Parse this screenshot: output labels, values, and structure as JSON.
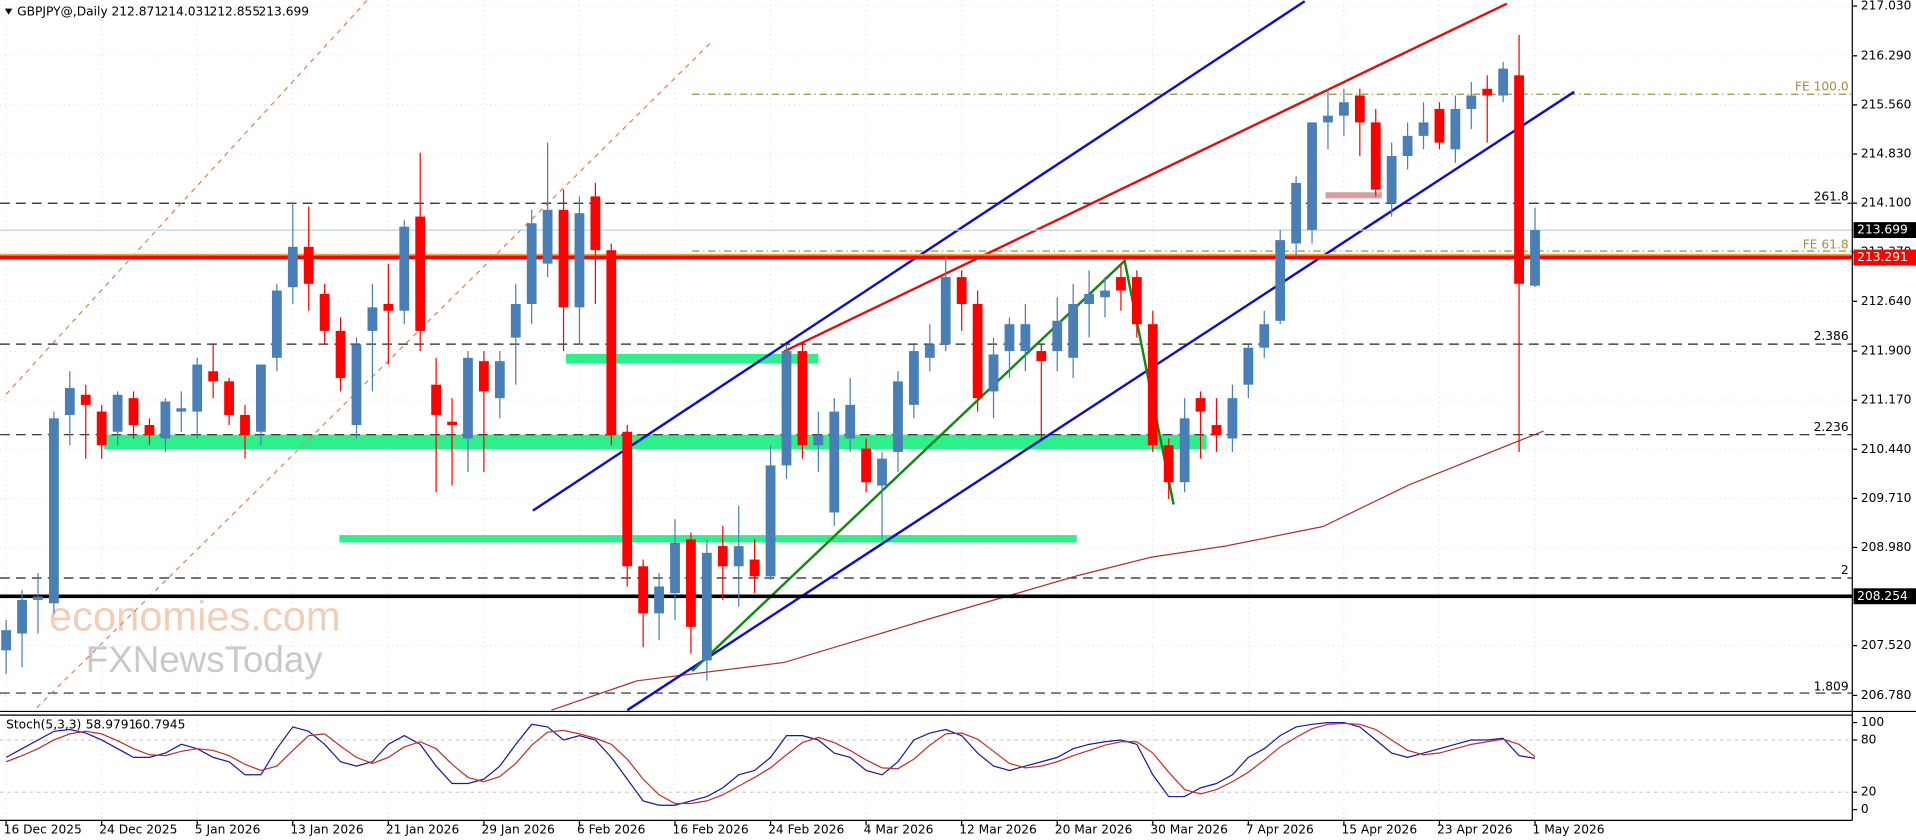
{
  "chart_data": [
    {
      "type": "candlestick",
      "title": "GBPJPY@,Daily",
      "categories": [
        "16 Dec 2025",
        null,
        null,
        null,
        null,
        null,
        "24 Dec 2025",
        null,
        null,
        null,
        null,
        null,
        "5 Jan 2026",
        null,
        null,
        null,
        null,
        null,
        "13 Jan 2026",
        null,
        null,
        null,
        null,
        null,
        "21 Jan 2026",
        null,
        null,
        null,
        null,
        null,
        "29 Jan 2026",
        null,
        null,
        null,
        null,
        null,
        "6 Feb 2026",
        null,
        null,
        null,
        null,
        null,
        "16 Feb 2026",
        null,
        null,
        null,
        null,
        null,
        "24 Feb 2026",
        null,
        null,
        null,
        null,
        null,
        "4 Mar 2026",
        null,
        null,
        null,
        null,
        null,
        "12 Mar 2026",
        null,
        null,
        null,
        null,
        null,
        "20 Mar 2026",
        null,
        null,
        null,
        null,
        null,
        "30 Mar 2026",
        null,
        null,
        null,
        null,
        null,
        "7 Apr 2026",
        null,
        null,
        null,
        null,
        null,
        "15 Apr 2026",
        null,
        null,
        null,
        null,
        null,
        "23 Apr 2026",
        null,
        null,
        null,
        null,
        null,
        "1 May 2026"
      ],
      "open": [
        207.45,
        207.7,
        208.2,
        208.15,
        210.95,
        211.25,
        211.0,
        210.7,
        211.2,
        210.8,
        210.6,
        211.0,
        211.0,
        211.6,
        211.45,
        210.95,
        210.7,
        211.8,
        212.85,
        213.45,
        212.75,
        212.2,
        210.8,
        212.2,
        212.6,
        212.5,
        213.9,
        211.4,
        210.85,
        210.6,
        211.75,
        211.2,
        212.1,
        212.6,
        213.2,
        214.0,
        212.55,
        214.2,
        213.4,
        210.7,
        208.7,
        208.0,
        208.3,
        209.1,
        207.3,
        209.0,
        208.7,
        208.8,
        208.55,
        210.2,
        211.9,
        210.5,
        209.5,
        210.6,
        210.45,
        209.9,
        210.4,
        211.1,
        211.8,
        212.0,
        213.0,
        212.6,
        211.3,
        211.9,
        211.9,
        211.9,
        211.9,
        211.8,
        212.6,
        212.7,
        213.0,
        213.0,
        212.3,
        210.5,
        209.95,
        211.2,
        210.8,
        210.6,
        211.4,
        211.95,
        212.35,
        213.5,
        213.7,
        215.3,
        215.4,
        215.7,
        215.3,
        214.1,
        214.8,
        215.1,
        215.5,
        214.9,
        215.5,
        215.8,
        215.7,
        216.0,
        212.871
      ],
      "high": [
        207.9,
        208.35,
        208.6,
        211.0,
        211.6,
        211.4,
        211.1,
        211.3,
        211.3,
        210.9,
        211.2,
        211.3,
        211.8,
        212.0,
        211.5,
        211.1,
        211.7,
        212.9,
        214.1,
        214.05,
        212.9,
        212.4,
        212.1,
        212.9,
        213.2,
        213.85,
        214.85,
        211.8,
        211.2,
        211.9,
        211.9,
        211.9,
        212.9,
        214.0,
        215.0,
        214.3,
        214.2,
        214.4,
        213.5,
        210.8,
        208.8,
        208.6,
        209.4,
        209.2,
        209.1,
        209.3,
        209.6,
        209.1,
        210.5,
        212.0,
        212.0,
        211.0,
        211.2,
        211.5,
        210.6,
        210.4,
        211.6,
        212.0,
        212.3,
        213.3,
        213.1,
        212.8,
        212.1,
        212.4,
        212.6,
        212.0,
        212.7,
        212.9,
        213.1,
        213.0,
        213.2,
        213.1,
        212.5,
        210.6,
        211.2,
        211.3,
        211.2,
        211.4,
        212.0,
        212.5,
        213.7,
        214.5,
        215.3,
        215.8,
        215.8,
        215.8,
        215.5,
        215.0,
        215.3,
        215.6,
        215.6,
        215.7,
        215.9,
        216.0,
        216.2,
        216.6,
        214.031
      ],
      "low": [
        207.1,
        207.2,
        207.7,
        208.0,
        210.5,
        210.3,
        210.3,
        210.5,
        210.6,
        210.5,
        210.4,
        210.7,
        210.6,
        211.2,
        210.8,
        210.3,
        210.5,
        211.6,
        212.6,
        212.5,
        212.0,
        211.3,
        210.6,
        211.3,
        211.7,
        212.3,
        211.9,
        209.8,
        209.9,
        210.1,
        210.1,
        210.9,
        211.4,
        212.3,
        213.0,
        211.9,
        212.0,
        212.6,
        210.5,
        208.4,
        207.5,
        207.6,
        207.9,
        207.4,
        207.0,
        208.2,
        208.1,
        208.3,
        208.5,
        210.0,
        210.3,
        210.1,
        209.3,
        210.4,
        209.8,
        209.1,
        210.1,
        210.9,
        211.6,
        211.9,
        212.2,
        211.0,
        210.9,
        211.5,
        211.6,
        210.6,
        211.6,
        211.5,
        212.1,
        212.4,
        212.5,
        212.1,
        210.4,
        209.7,
        209.8,
        210.3,
        210.4,
        210.4,
        211.2,
        211.8,
        212.3,
        213.3,
        213.5,
        214.9,
        215.1,
        214.8,
        214.2,
        213.9,
        214.6,
        214.9,
        214.9,
        214.7,
        215.2,
        215.0,
        215.6,
        210.4,
        212.855
      ],
      "close": [
        207.75,
        208.2,
        208.25,
        210.9,
        211.35,
        211.1,
        210.5,
        211.25,
        210.8,
        210.65,
        211.15,
        211.05,
        211.7,
        211.45,
        210.95,
        210.65,
        211.7,
        212.8,
        213.45,
        212.9,
        212.2,
        211.5,
        212.0,
        212.55,
        212.5,
        213.75,
        212.2,
        210.95,
        210.8,
        211.8,
        211.3,
        211.75,
        212.6,
        213.8,
        214.0,
        212.55,
        213.95,
        213.4,
        210.65,
        208.7,
        208.0,
        208.4,
        209.05,
        207.8,
        208.9,
        208.7,
        209.0,
        208.55,
        210.2,
        211.9,
        210.5,
        210.65,
        211.0,
        211.1,
        209.95,
        210.3,
        211.45,
        211.9,
        212.0,
        213.0,
        212.6,
        211.2,
        211.85,
        212.3,
        212.3,
        211.75,
        212.35,
        212.6,
        212.75,
        212.8,
        212.8,
        212.3,
        210.5,
        209.95,
        210.9,
        211.0,
        210.65,
        211.2,
        211.95,
        212.3,
        213.55,
        214.4,
        215.3,
        215.4,
        215.6,
        215.3,
        214.3,
        214.8,
        215.1,
        215.3,
        215.0,
        215.5,
        215.7,
        215.7,
        216.1,
        212.9,
        213.699
      ],
      "up_color": "#4a7fb5",
      "down_color": "#ff0000",
      "ylim": [
        206.56,
        217.12
      ],
      "yticks": [
        {
          "value": 206.78,
          "label": "206.780"
        },
        {
          "value": 207.52,
          "label": "207.520"
        },
        {
          "value": 208.98,
          "label": "208.980"
        },
        {
          "value": 209.71,
          "label": "209.710"
        },
        {
          "value": 210.44,
          "label": "210.440"
        },
        {
          "value": 211.17,
          "label": "211.170"
        },
        {
          "value": 211.9,
          "label": "211.900"
        },
        {
          "value": 212.64,
          "label": "212.640"
        },
        {
          "value": 213.37,
          "label": "213.370"
        },
        {
          "value": 214.1,
          "label": "214.100"
        },
        {
          "value": 214.83,
          "label": "214.830"
        },
        {
          "value": 215.56,
          "label": "215.560"
        },
        {
          "value": 216.29,
          "label": "216.290"
        },
        {
          "value": 217.03,
          "label": "217.030"
        }
      ],
      "grid": true,
      "price_tags": [
        213.291,
        208.254
      ],
      "price_tag_colors": [
        "#ff0000",
        "#000000"
      ],
      "level_labels": [
        "FE 100.0",
        "261.8",
        "FE 61.8",
        "2.386",
        "2.236",
        "2",
        "1.809"
      ],
      "watermark": [
        "economies.com",
        "FXNewsToday"
      ]
    },
    {
      "type": "line",
      "title": "Stoch(5,3,3)",
      "series": [
        {
          "color": "#1a1a9c",
          "values": [
            60,
            70,
            80,
            90,
            92,
            88,
            80,
            70,
            60,
            60,
            65,
            75,
            70,
            60,
            55,
            40,
            40,
            70,
            95,
            90,
            75,
            55,
            50,
            55,
            75,
            85,
            75,
            50,
            30,
            30,
            35,
            50,
            75,
            98,
            95,
            80,
            85,
            80,
            60,
            35,
            10,
            5,
            5,
            10,
            15,
            25,
            40,
            45,
            60,
            85,
            85,
            80,
            65,
            60,
            45,
            40,
            55,
            80,
            88,
            92,
            85,
            65,
            50,
            45,
            50,
            55,
            60,
            70,
            75,
            78,
            80,
            75,
            40,
            15,
            15,
            25,
            30,
            40,
            60,
            70,
            85,
            95,
            98,
            100,
            100,
            95,
            80,
            65,
            60,
            65,
            70,
            75,
            80,
            80,
            82,
            62,
            58.9791
          ]
        },
        {
          "color": "#c0302b",
          "values": [
            55,
            62,
            70,
            80,
            87,
            90,
            87,
            79,
            70,
            63,
            62,
            67,
            70,
            68,
            62,
            52,
            45,
            50,
            68,
            85,
            87,
            73,
            60,
            53,
            60,
            72,
            78,
            70,
            52,
            37,
            32,
            38,
            53,
            74,
            89,
            91,
            87,
            82,
            75,
            58,
            35,
            17,
            7,
            7,
            10,
            17,
            27,
            37,
            48,
            63,
            77,
            83,
            77,
            68,
            57,
            48,
            47,
            58,
            74,
            87,
            88,
            81,
            67,
            53,
            48,
            50,
            55,
            62,
            68,
            74,
            78,
            78,
            65,
            43,
            23,
            18,
            23,
            32,
            43,
            57,
            72,
            83,
            93,
            98,
            99,
            98,
            92,
            80,
            68,
            63,
            65,
            70,
            75,
            78,
            81,
            75,
            60.7945
          ]
        }
      ],
      "ylim": [
        -11,
        110
      ],
      "yticks": [
        0,
        20,
        80,
        100
      ],
      "grid": true
    }
  ]
}
